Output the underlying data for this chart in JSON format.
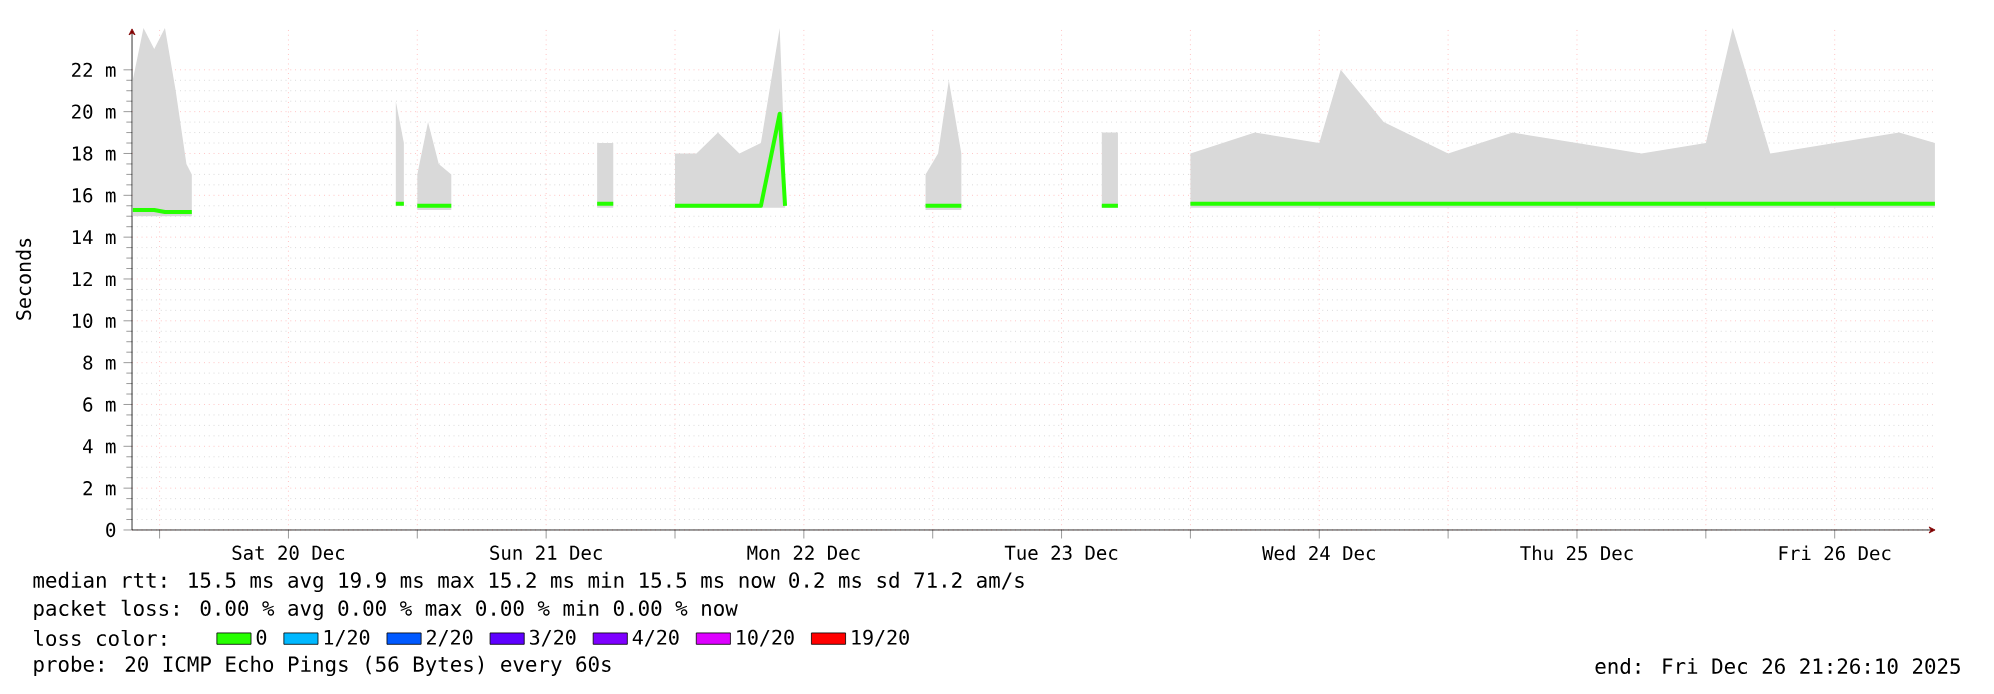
{
  "chart_data": {
    "type": "line",
    "ylabel": "Seconds",
    "xlim": [
      "2025-12-19T21:26",
      "2025-12-26T21:26"
    ],
    "xticks": [
      {
        "value": "2025-12-20T00:00",
        "label": null
      },
      {
        "value": "2025-12-20T12:00",
        "label": "Sat 20 Dec"
      },
      {
        "value": "2025-12-21T00:00",
        "label": null
      },
      {
        "value": "2025-12-21T12:00",
        "label": "Sun 21 Dec"
      },
      {
        "value": "2025-12-22T00:00",
        "label": null
      },
      {
        "value": "2025-12-22T12:00",
        "label": "Mon 22 Dec"
      },
      {
        "value": "2025-12-23T00:00",
        "label": null
      },
      {
        "value": "2025-12-23T12:00",
        "label": "Tue 23 Dec"
      },
      {
        "value": "2025-12-24T00:00",
        "label": null
      },
      {
        "value": "2025-12-24T12:00",
        "label": "Wed 24 Dec"
      },
      {
        "value": "2025-12-25T00:00",
        "label": null
      },
      {
        "value": "2025-12-25T12:00",
        "label": "Thu 25 Dec"
      },
      {
        "value": "2025-12-26T00:00",
        "label": null
      },
      {
        "value": "2025-12-26T12:00",
        "label": "Fri 26 Dec"
      }
    ],
    "ylim": [
      0,
      24
    ],
    "yticks": [
      0,
      {
        "value": 2,
        "label": "2 m"
      },
      {
        "value": 4,
        "label": "4 m"
      },
      {
        "value": 6,
        "label": "6 m"
      },
      {
        "value": 8,
        "label": "8 m"
      },
      {
        "value": 10,
        "label": "10 m"
      },
      {
        "value": 12,
        "label": "12 m"
      },
      {
        "value": 14,
        "label": "14 m"
      },
      {
        "value": 16,
        "label": "16 m"
      },
      {
        "value": 18,
        "label": "18 m"
      },
      {
        "value": 20,
        "label": "20 m"
      },
      {
        "value": 22,
        "label": "22 m"
      }
    ],
    "grid": true,
    "legend": "bottom",
    "x": [
      "2025-12-19T21:30",
      "2025-12-19T22:30",
      "2025-12-19T23:30",
      "2025-12-20T00:30",
      "2025-12-20T01:30",
      "2025-12-20T02:30",
      "2025-12-20T03:00",
      "2025-12-20T12:00",
      "2025-12-20T22:00",
      "2025-12-20T22:45",
      "2025-12-20T23:30",
      "2025-12-21T00:00",
      "2025-12-21T01:00",
      "2025-12-21T02:00",
      "2025-12-21T03:10",
      "2025-12-21T10:00",
      "2025-12-21T16:45",
      "2025-12-21T18:15",
      "2025-12-21T20:00",
      "2025-12-22T00:00",
      "2025-12-22T02:00",
      "2025-12-22T04:00",
      "2025-12-22T06:00",
      "2025-12-22T08:00",
      "2025-12-22T09:45",
      "2025-12-22T10:15",
      "2025-12-22T18:00",
      "2025-12-22T23:20",
      "2025-12-23T00:30",
      "2025-12-23T01:30",
      "2025-12-23T02:40",
      "2025-12-23T10:00",
      "2025-12-23T15:45",
      "2025-12-23T17:15",
      "2025-12-23T20:00",
      "2025-12-24T00:00",
      "2025-12-24T06:00",
      "2025-12-24T12:00",
      "2025-12-24T14:00",
      "2025-12-24T18:00",
      "2025-12-25T00:00",
      "2025-12-25T06:00",
      "2025-12-25T12:00",
      "2025-12-25T18:00",
      "2025-12-26T00:00",
      "2025-12-26T02:30",
      "2025-12-26T06:00",
      "2025-12-26T12:00",
      "2025-12-26T18:00",
      "2025-12-26T21:20"
    ],
    "series": [
      {
        "name": "0",
        "color": "#26ff00",
        "values": [
          15.3,
          15.3,
          15.3,
          15.2,
          15.2,
          15.2,
          15.2,
          null,
          15.6,
          15.6,
          null,
          15.5,
          15.5,
          15.5,
          15.5,
          null,
          15.6,
          15.6,
          null,
          15.5,
          15.5,
          15.5,
          15.5,
          15.5,
          19.9,
          15.5,
          null,
          15.5,
          15.5,
          15.5,
          15.5,
          null,
          15.5,
          15.5,
          null,
          15.6,
          15.6,
          15.6,
          15.6,
          15.6,
          15.6,
          15.6,
          15.6,
          15.6,
          15.6,
          15.6,
          15.6,
          15.6,
          15.6,
          15.6
        ],
        "lower": [
          15.0,
          15.0,
          15.0,
          15.0,
          15.0,
          15.0,
          15.0,
          null,
          15.5,
          15.5,
          null,
          15.3,
          15.3,
          15.3,
          15.3,
          null,
          15.4,
          15.4,
          null,
          15.4,
          15.4,
          15.4,
          15.4,
          15.4,
          15.4,
          15.4,
          null,
          15.3,
          15.3,
          15.3,
          15.3,
          null,
          15.4,
          15.4,
          null,
          15.4,
          15.4,
          15.4,
          15.4,
          15.4,
          15.4,
          15.4,
          15.4,
          15.4,
          15.4,
          15.4,
          15.4,
          15.4,
          15.4,
          15.4
        ],
        "upper": [
          21.5,
          24,
          23,
          24,
          21,
          17.5,
          17,
          null,
          20.5,
          18.5,
          null,
          17,
          19.5,
          17.5,
          17,
          null,
          18.5,
          18.5,
          null,
          18,
          18,
          19,
          18,
          18.5,
          24,
          17.5,
          null,
          17,
          18,
          21.5,
          18,
          null,
          19,
          19,
          null,
          18,
          19,
          18.5,
          22,
          19.5,
          18,
          19,
          18.5,
          18,
          18.5,
          24,
          18,
          18.5,
          19,
          18.5
        ]
      },
      {
        "name": "1/20",
        "color": "#00b8ff",
        "values": [
          null,
          null,
          null,
          null,
          null,
          null,
          null,
          null,
          null,
          null,
          null,
          null,
          null,
          null,
          null,
          null,
          null,
          null,
          null,
          null,
          null,
          null,
          null,
          null,
          null,
          null,
          null,
          null,
          null,
          null,
          null,
          null,
          null,
          null,
          null,
          null,
          null,
          null,
          null,
          null,
          null,
          null,
          null,
          null,
          null,
          null,
          null,
          null,
          null,
          null
        ]
      },
      {
        "name": "2/20",
        "color": "#0059ff",
        "values": [
          null,
          null,
          null,
          null,
          null,
          null,
          null,
          null,
          null,
          null,
          null,
          null,
          null,
          null,
          null,
          null,
          null,
          null,
          null,
          null,
          null,
          null,
          null,
          null,
          null,
          null,
          null,
          null,
          null,
          null,
          null,
          null,
          null,
          null,
          null,
          null,
          null,
          null,
          null,
          null,
          null,
          null,
          null,
          null,
          null,
          null,
          null,
          null,
          null,
          null
        ]
      },
      {
        "name": "3/20",
        "color": "#5e00ff",
        "values": [
          null,
          null,
          null,
          null,
          null,
          null,
          null,
          null,
          null,
          null,
          null,
          null,
          null,
          null,
          null,
          null,
          null,
          null,
          null,
          null,
          null,
          null,
          null,
          null,
          null,
          null,
          null,
          null,
          null,
          null,
          null,
          null,
          null,
          null,
          null,
          null,
          null,
          null,
          null,
          null,
          null,
          null,
          null,
          null,
          null,
          null,
          null,
          null,
          null,
          null
        ]
      },
      {
        "name": "4/20",
        "color": "#7e00ff",
        "values": [
          null,
          null,
          null,
          null,
          null,
          null,
          null,
          null,
          null,
          null,
          null,
          null,
          null,
          null,
          null,
          null,
          null,
          null,
          null,
          null,
          null,
          null,
          null,
          null,
          null,
          null,
          null,
          null,
          null,
          null,
          null,
          null,
          null,
          null,
          null,
          null,
          null,
          null,
          null,
          null,
          null,
          null,
          null,
          null,
          null,
          null,
          null,
          null,
          null,
          null
        ]
      },
      {
        "name": "10/20",
        "color": "#dd00ff",
        "values": [
          null,
          null,
          null,
          null,
          null,
          null,
          null,
          null,
          null,
          null,
          null,
          null,
          null,
          null,
          null,
          null,
          null,
          null,
          null,
          null,
          null,
          null,
          null,
          null,
          null,
          null,
          null,
          null,
          null,
          null,
          null,
          null,
          null,
          null,
          null,
          null,
          null,
          null,
          null,
          null,
          null,
          null,
          null,
          null,
          null,
          null,
          null,
          null,
          null,
          null
        ]
      },
      {
        "name": "19/20",
        "color": "#ff0000",
        "values": [
          null,
          null,
          null,
          null,
          null,
          null,
          null,
          null,
          null,
          null,
          null,
          null,
          null,
          null,
          null,
          null,
          null,
          null,
          null,
          null,
          null,
          null,
          null,
          null,
          null,
          null,
          null,
          null,
          null,
          null,
          null,
          null,
          null,
          null,
          null,
          null,
          null,
          null,
          null,
          null,
          null,
          null,
          null,
          null,
          null,
          null,
          null,
          null,
          null,
          null
        ]
      }
    ],
    "annotations": [
      "median rtt:  15.5 ms avg  19.9 ms max  15.2 ms min  15.5 ms now  0.2 ms sd  71.2   am/s",
      "packet loss: 0.00 % avg  0.00 % max  0.00 % min  0.00 % now",
      "loss color:",
      "probe:       20 ICMP Echo Pings (56 Bytes) every 60s",
      "end: Fri Dec 26 21:26:10 2025"
    ]
  }
}
